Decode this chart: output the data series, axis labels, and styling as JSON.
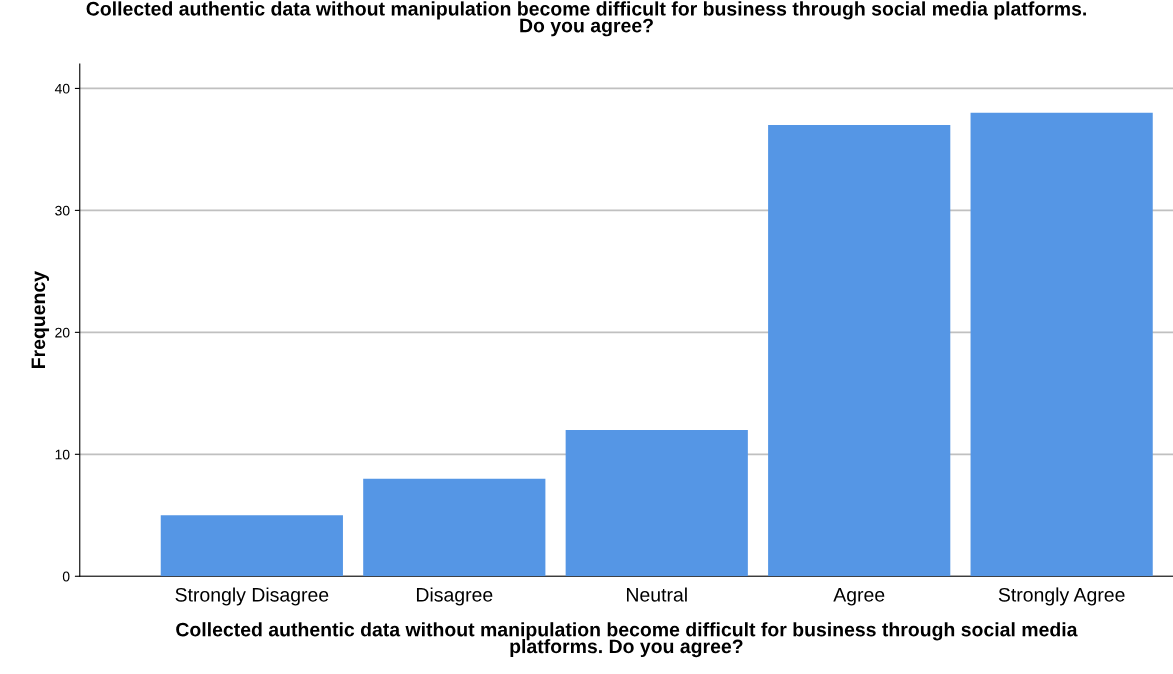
{
  "chart_data": {
    "type": "bar",
    "title": "Collected authentic data without manipulation become difficult for business through social media platforms.\nDo you agree?",
    "xlabel": "Collected authentic data without manipulation become difficult for business through social media\nplatforms. Do you agree?",
    "ylabel": "Frequency",
    "categories": [
      "Strongly Disagree",
      "Disagree",
      "Neutral",
      "Agree",
      "Strongly Agree"
    ],
    "values": [
      5,
      8,
      12,
      37,
      38
    ],
    "color": "#5596e5",
    "ylim": [
      0,
      42
    ],
    "yticks": [
      0,
      10,
      20,
      30,
      40
    ],
    "grid": "y"
  }
}
